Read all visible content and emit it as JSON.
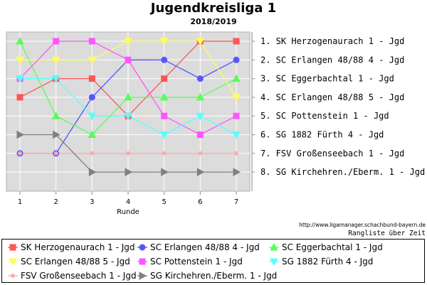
{
  "chart_data": {
    "type": "line",
    "title": "Jugendkreisliga 1",
    "subtitle": "2018/2019",
    "xlabel": "Runde",
    "x": [
      1,
      2,
      3,
      4,
      5,
      6,
      7
    ],
    "ylim": [
      8,
      1
    ],
    "grid": true,
    "legend_position": "bottom",
    "series": [
      {
        "name": "SK Herzogenaurach 1 - Jgd",
        "color": "#ff5555",
        "marker": "square",
        "values": [
          4,
          3,
          3,
          5,
          3,
          1,
          1
        ]
      },
      {
        "name": "SC Erlangen 48/88 4 - Jgd",
        "color": "#5555ff",
        "marker": "circle",
        "values": [
          7,
          7,
          4,
          2,
          2,
          3,
          2
        ]
      },
      {
        "name": "SC Eggerbachtal 1 - Jgd",
        "color": "#55ff55",
        "marker": "triangle",
        "values": [
          1,
          5,
          6,
          4,
          4,
          4,
          3
        ]
      },
      {
        "name": "SC Erlangen 48/88 5 - Jgd",
        "color": "#ffff55",
        "marker": "tri-down",
        "values": [
          2,
          2,
          2,
          1,
          1,
          1,
          4
        ]
      },
      {
        "name": "SC Pottenstein 1 - Jgd",
        "color": "#ff55ff",
        "marker": "square",
        "values": [
          3,
          1,
          1,
          2,
          5,
          6,
          5
        ]
      },
      {
        "name": "SG 1882 Fürth 4 - Jgd",
        "color": "#55ffff",
        "marker": "tri-down",
        "values": [
          3,
          3,
          5,
          5,
          6,
          5,
          6
        ]
      },
      {
        "name": "FSV Großenseebach 1 - Jgd",
        "color": "#ffaaaa",
        "marker": "none",
        "values": [
          7,
          7,
          7,
          7,
          7,
          7,
          7
        ]
      },
      {
        "name": "SG Kirchehren./Eberm. 1 - Jgd",
        "color": "#808080",
        "marker": "tri-right",
        "values": [
          6,
          6,
          8,
          8,
          8,
          8,
          8
        ]
      }
    ],
    "final_ranking": [
      "1. SK Herzogenaurach 1 - Jgd",
      "2. SC Erlangen 48/88 4 - Jgd",
      "3. SC Eggerbachtal 1 - Jgd",
      "4. SC Erlangen 48/88 5 - Jgd",
      "5. SC Pottenstein 1 - Jgd",
      "6. SG 1882 Fürth 4 - Jgd",
      "7. FSV Großenseebach 1 - Jgd",
      "8. SG Kirchehren./Eberm. 1 - Jgd"
    ],
    "source_url": "http://www.ligamanager.schachbund-bayern.de",
    "caption": "Rangliste über Zeit"
  }
}
